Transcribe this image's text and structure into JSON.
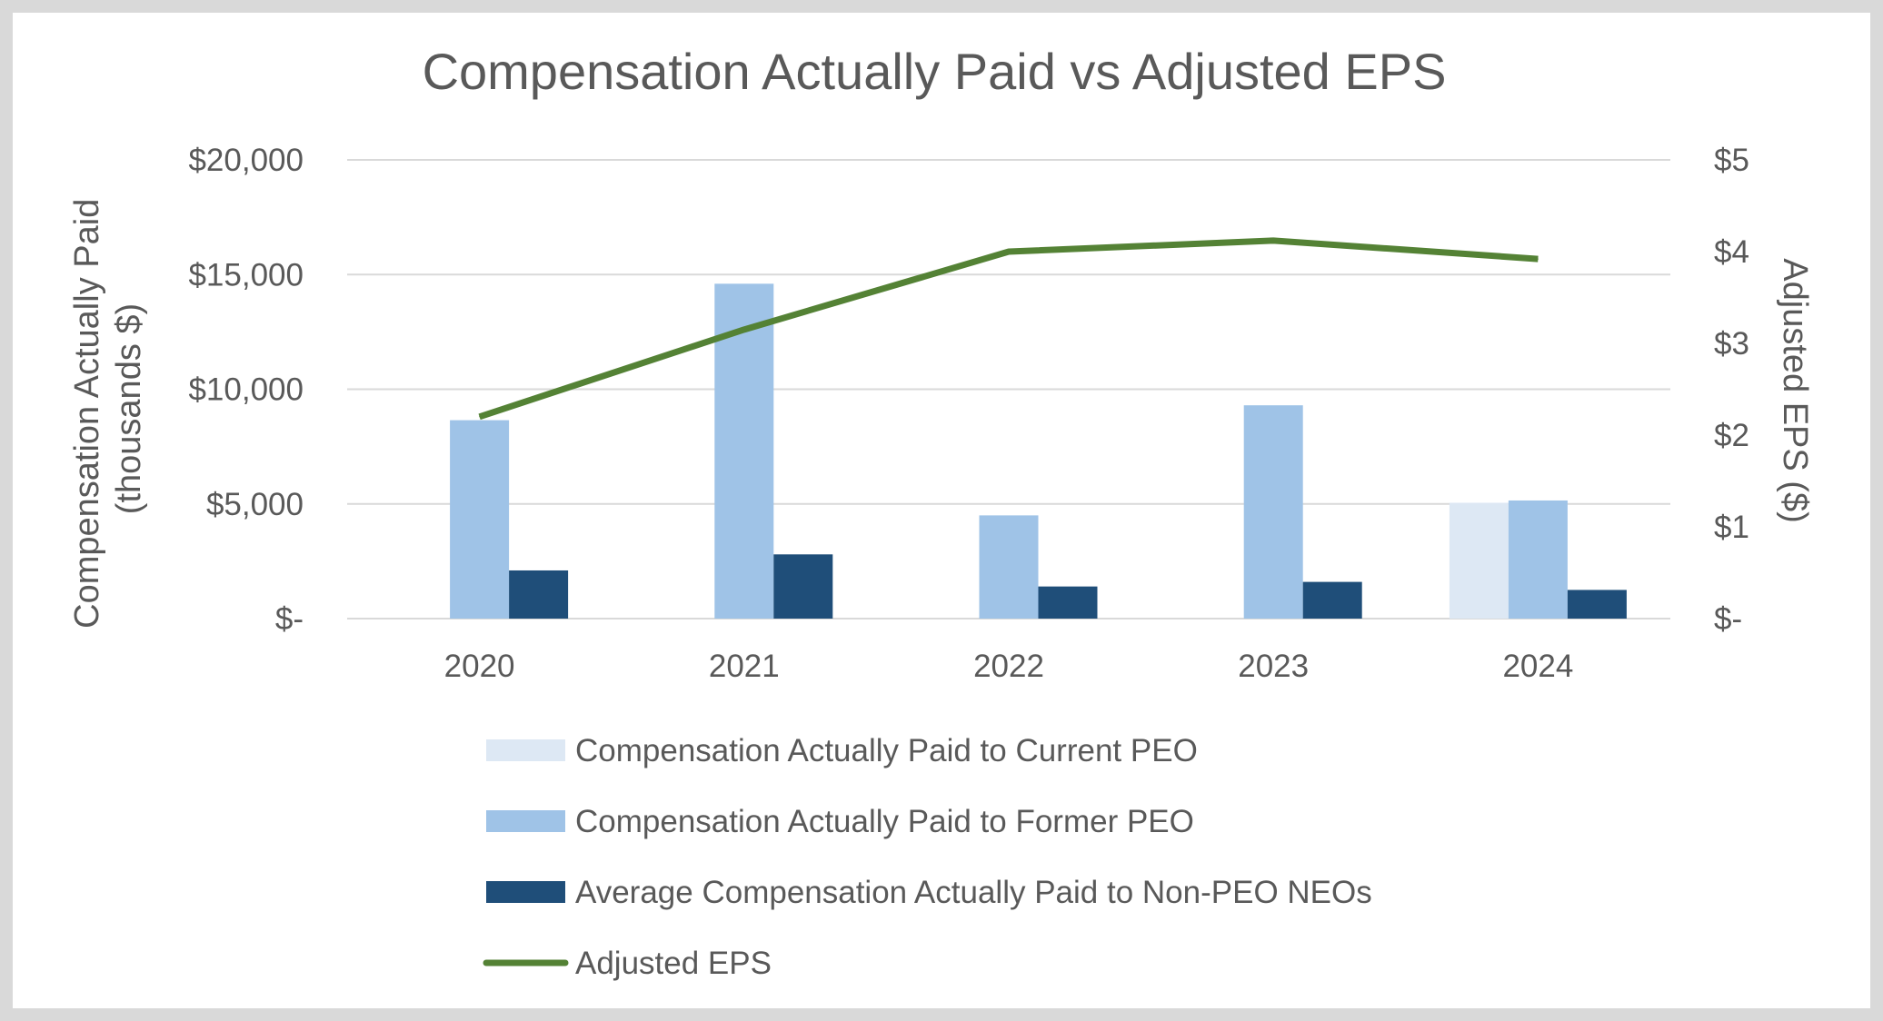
{
  "chart_data": {
    "type": "bar",
    "title": "Compensation Actually Paid vs Adjusted EPS",
    "categories": [
      "2020",
      "2021",
      "2022",
      "2023",
      "2024"
    ],
    "ylabel_lines": [
      "Compensation Actually Paid",
      "(thousands $)"
    ],
    "ylim": [
      0,
      20000
    ],
    "y_ticks": [
      0,
      5000,
      10000,
      15000,
      20000
    ],
    "y_tick_labels": [
      "$-",
      "$5,000",
      "$10,000",
      "$15,000",
      "$20,000"
    ],
    "y2label": "Adjusted EPS ($)",
    "y2lim": [
      0,
      5
    ],
    "y2_ticks": [
      0,
      1,
      2,
      3,
      4,
      5
    ],
    "y2_tick_labels": [
      "$-",
      "$1",
      "$2",
      "$3",
      "$4",
      "$5"
    ],
    "grid": true,
    "legend_position": "bottom",
    "series": [
      {
        "name": "Compensation Actually Paid to Current PEO",
        "kind": "bar",
        "axis": "left",
        "color": "#dde8f4",
        "values": [
          null,
          null,
          null,
          null,
          5050
        ]
      },
      {
        "name": "Compensation Actually Paid to Former PEO",
        "kind": "bar",
        "axis": "left",
        "color": "#9fc3e7",
        "values": [
          8650,
          14600,
          4500,
          9300,
          5150
        ]
      },
      {
        "name": "Average Compensation Actually Paid to Non-PEO NEOs",
        "kind": "bar",
        "axis": "left",
        "color": "#1f4e79",
        "values": [
          2100,
          2800,
          1400,
          1600,
          1250
        ]
      },
      {
        "name": "Adjusted EPS",
        "kind": "line",
        "axis": "right",
        "color": "#548235",
        "values": [
          2.2,
          3.15,
          4.0,
          4.12,
          3.92
        ]
      }
    ]
  }
}
